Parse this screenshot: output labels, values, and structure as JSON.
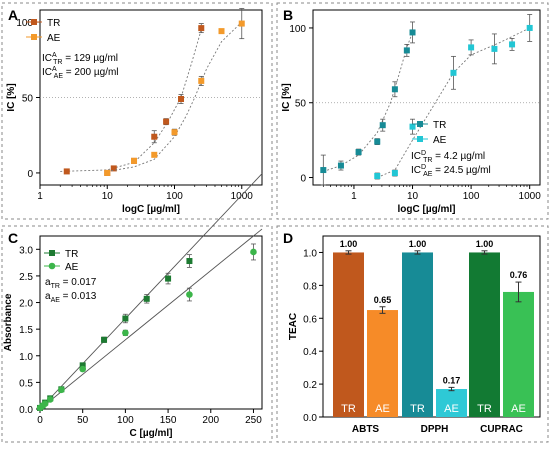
{
  "chart_data": [
    {
      "panel": "A",
      "type": "scatter",
      "xlabel": "logC [ug/ml]",
      "ylabel": "IC [%]",
      "xscale": "log",
      "xlim": [
        1,
        2000
      ],
      "ylim": [
        -8,
        108
      ],
      "x_ticks": [
        1,
        10,
        100,
        1000
      ],
      "y_ticks": [
        0,
        50,
        100
      ],
      "reference_line_y": 50,
      "legend_position": "top-left",
      "annotations": [
        "IC^A_TR = 129 µg/ml",
        "IC^A_AE = 200 µg/ml"
      ],
      "series": [
        {
          "name": "TR",
          "color": "#c0581d",
          "x": [
            2.5,
            10,
            12.5,
            25,
            50,
            75,
            125,
            250
          ],
          "y": [
            1,
            0,
            3,
            8,
            24,
            34,
            49,
            96
          ],
          "err": [
            1,
            1,
            1,
            1,
            4,
            2,
            3,
            3
          ],
          "fit": [
            [
              2,
              1
            ],
            [
              10,
              2
            ],
            [
              25,
              7
            ],
            [
              50,
              20
            ],
            [
              80,
              34
            ],
            [
              125,
              50
            ],
            [
              180,
              73
            ],
            [
              250,
              95
            ]
          ]
        },
        {
          "name": "AE",
          "color": "#f39a2b",
          "x": [
            10,
            25,
            50,
            100,
            250,
            500,
            1000
          ],
          "y": [
            0,
            8,
            12,
            27,
            61,
            94,
            99
          ],
          "err": [
            1,
            1,
            1,
            2,
            3,
            1,
            10
          ],
          "fit": [
            [
              10,
              1
            ],
            [
              25,
              4
            ],
            [
              50,
              9
            ],
            [
              100,
              24
            ],
            [
              150,
              38
            ],
            [
              200,
              50
            ],
            [
              300,
              69
            ],
            [
              500,
              87
            ],
            [
              1000,
              100
            ]
          ]
        }
      ]
    },
    {
      "panel": "B",
      "type": "scatter",
      "xlabel": "logC [ug/ml]",
      "ylabel": "IC [%]",
      "xscale": "log",
      "xlim": [
        0.2,
        1500
      ],
      "ylim": [
        -5,
        112
      ],
      "x_ticks": [
        1,
        10,
        100,
        1000
      ],
      "y_ticks": [
        0,
        50,
        100
      ],
      "reference_line_y": 50,
      "legend_position": "bottom-right",
      "annotations": [
        "IC^D_TR = 4.2 µg/ml",
        "IC^D_AE = 24.5 µg/ml"
      ],
      "series": [
        {
          "name": "TR",
          "color": "#178b96",
          "x": [
            0.3,
            0.6,
            1.2,
            2.5,
            3.1,
            5,
            8,
            10
          ],
          "y": [
            5,
            8,
            17,
            24,
            35,
            59,
            85,
            97
          ],
          "err": [
            10,
            3,
            2,
            2,
            4,
            5,
            4,
            7
          ],
          "fit": [
            [
              0.3,
              4
            ],
            [
              0.6,
              8
            ],
            [
              1.2,
              15
            ],
            [
              2.5,
              30
            ],
            [
              4.2,
              50
            ],
            [
              6,
              70
            ],
            [
              8,
              87
            ],
            [
              10,
              97
            ]
          ]
        },
        {
          "name": "AE",
          "color": "#22c6d4",
          "x": [
            2.5,
            5,
            10,
            50,
            100,
            250,
            500,
            1000
          ],
          "y": [
            1,
            3,
            34,
            70,
            87,
            86,
            89,
            100
          ],
          "err": [
            2,
            2,
            5,
            11,
            5,
            10,
            4,
            9
          ],
          "fit": [
            [
              2.5,
              0
            ],
            [
              5,
              5
            ],
            [
              10,
              25
            ],
            [
              24.5,
              50
            ],
            [
              50,
              70
            ],
            [
              100,
              82
            ],
            [
              300,
              90
            ],
            [
              1000,
              100
            ]
          ]
        }
      ]
    },
    {
      "panel": "C",
      "type": "scatter",
      "xlabel": "C [ug/ml]",
      "ylabel": "Absorbance",
      "xlim": [
        0,
        260
      ],
      "ylim": [
        0,
        3.25
      ],
      "x_ticks": [
        0,
        50,
        100,
        150,
        200,
        250
      ],
      "y_ticks": [
        0.0,
        0.5,
        1.0,
        1.5,
        2.0,
        2.5,
        3.0
      ],
      "legend_position": "top-left",
      "annotations": [
        "a_TR = 0.017",
        "a_AE = 0.013"
      ],
      "series": [
        {
          "name": "TR",
          "color": "#1d7a31",
          "marker": "square",
          "x": [
            0,
            3,
            6,
            12,
            25,
            50,
            75,
            100,
            125,
            150,
            175
          ],
          "y": [
            0.02,
            0.06,
            0.12,
            0.2,
            0.37,
            0.82,
            1.3,
            1.7,
            2.07,
            2.45,
            2.78
          ],
          "err": [
            0,
            0,
            0,
            0,
            0,
            0.04,
            0.05,
            0.08,
            0.08,
            0.1,
            0.12
          ],
          "fit_slope": 0.017
        },
        {
          "name": "AE",
          "color": "#3cb54a",
          "marker": "circle",
          "x": [
            0,
            3,
            6,
            12,
            25,
            50,
            100,
            175,
            250
          ],
          "y": [
            0.02,
            0.06,
            0.1,
            0.18,
            0.36,
            0.75,
            1.43,
            2.15,
            2.95
          ],
          "err": [
            0,
            0,
            0,
            0,
            0,
            0.04,
            0.05,
            0.12,
            0.15
          ],
          "fit_slope": 0.013
        }
      ]
    },
    {
      "panel": "D",
      "type": "bar",
      "ylabel": "TEAC",
      "ylim": [
        0,
        1.1
      ],
      "y_ticks": [
        0.0,
        0.2,
        0.4,
        0.6,
        0.8,
        1.0
      ],
      "groups": [
        "ABTS",
        "DPPH",
        "CUPRAC"
      ],
      "bars": [
        {
          "group": "ABTS",
          "label": "TR",
          "value": 1.0,
          "value_label": "1.00",
          "err": 0.01,
          "color": "#c0581d"
        },
        {
          "group": "ABTS",
          "label": "AE",
          "value": 0.65,
          "value_label": "0.65",
          "err": 0.02,
          "color": "#f68b28"
        },
        {
          "group": "DPPH",
          "label": "TR",
          "value": 1.0,
          "value_label": "1.00",
          "err": 0.01,
          "color": "#178b96"
        },
        {
          "group": "DPPH",
          "label": "AE",
          "value": 0.17,
          "value_label": "0.17",
          "err": 0.01,
          "color": "#2ec9d6"
        },
        {
          "group": "CUPRAC",
          "label": "TR",
          "value": 1.0,
          "value_label": "1.00",
          "err": 0.01,
          "color": "#127a33"
        },
        {
          "group": "CUPRAC",
          "label": "AE",
          "value": 0.76,
          "value_label": "0.76",
          "err": 0.06,
          "color": "#39c155"
        }
      ]
    }
  ]
}
